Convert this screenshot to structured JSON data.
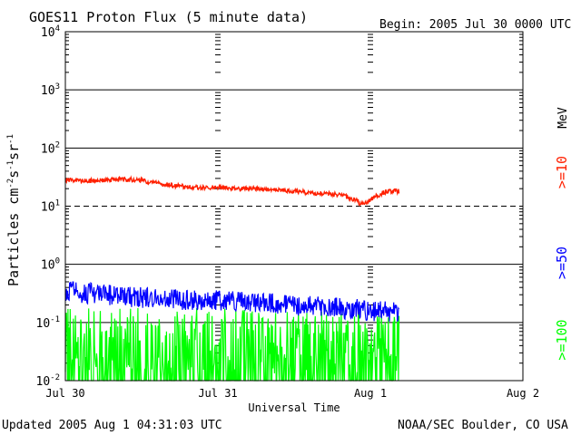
{
  "chart_data": {
    "type": "line",
    "title": "GOES11 Proton Flux (5 minute data)",
    "begin_label": "Begin: 2005 Jul 30 0000 UTC",
    "xlabel": "Universal Time",
    "ylabel_main": "Particles cm",
    "ylabel_exp1": "-2",
    "ylabel_mid1": "s",
    "ylabel_exp2": "-1",
    "ylabel_mid2": "sr",
    "ylabel_exp3": "-1",
    "yscale": "log",
    "ylim": [
      0.01,
      10000
    ],
    "y_ticks": [
      {
        "value": 10000,
        "base": "10",
        "exp": "4"
      },
      {
        "value": 1000,
        "base": "10",
        "exp": "3"
      },
      {
        "value": 100,
        "base": "10",
        "exp": "2"
      },
      {
        "value": 10,
        "base": "10",
        "exp": "1"
      },
      {
        "value": 1,
        "base": "10",
        "exp": "0"
      },
      {
        "value": 0.1,
        "base": "10",
        "exp": "-1"
      },
      {
        "value": 0.01,
        "base": "10",
        "exp": "-2"
      }
    ],
    "x_ticks": [
      {
        "value": "2005-07-30",
        "label": "Jul 30"
      },
      {
        "value": "2005-07-31",
        "label": "Jul 31"
      },
      {
        "value": "2005-08-01",
        "label": "Aug 1"
      },
      {
        "value": "2005-08-02",
        "label": "Aug 2"
      }
    ],
    "xlim": [
      "2005-07-30",
      "2005-08-02"
    ],
    "alert_threshold": 10,
    "series": [
      {
        "name": ">=10",
        "unit": "MeV",
        "color": "#ff2000",
        "points": [
          [
            "2005-07-30T00:00",
            28
          ],
          [
            "2005-07-30T03:00",
            27
          ],
          [
            "2005-07-30T06:00",
            28
          ],
          [
            "2005-07-30T09:00",
            29
          ],
          [
            "2005-07-30T12:00",
            28
          ],
          [
            "2005-07-30T15:00",
            24
          ],
          [
            "2005-07-30T18:00",
            22
          ],
          [
            "2005-07-30T21:00",
            21
          ],
          [
            "2005-07-31T00:00",
            21
          ],
          [
            "2005-07-31T03:00",
            20
          ],
          [
            "2005-07-31T06:00",
            20
          ],
          [
            "2005-07-31T09:00",
            19
          ],
          [
            "2005-07-31T12:00",
            18
          ],
          [
            "2005-07-31T15:00",
            17
          ],
          [
            "2005-07-31T18:00",
            16
          ],
          [
            "2005-07-31T20:00",
            15
          ],
          [
            "2005-07-31T21:30",
            13
          ],
          [
            "2005-07-31T22:30",
            11
          ],
          [
            "2005-07-31T23:30",
            12
          ],
          [
            "2005-08-01T01:00",
            15
          ],
          [
            "2005-08-01T02:30",
            18
          ],
          [
            "2005-08-01T04:30",
            18
          ]
        ]
      },
      {
        "name": ">=50",
        "color": "#0000ff",
        "points": [
          [
            "2005-07-30T00:00",
            0.35
          ],
          [
            "2005-07-30T06:00",
            0.3
          ],
          [
            "2005-07-30T12:00",
            0.27
          ],
          [
            "2005-07-30T18:00",
            0.25
          ],
          [
            "2005-07-31T00:00",
            0.24
          ],
          [
            "2005-07-31T06:00",
            0.22
          ],
          [
            "2005-07-31T12:00",
            0.2
          ],
          [
            "2005-07-31T18:00",
            0.18
          ],
          [
            "2005-08-01T00:00",
            0.16
          ],
          [
            "2005-08-01T04:30",
            0.15
          ]
        ]
      },
      {
        "name": ">=100",
        "color": "#00ff00",
        "points": [
          [
            "2005-07-30T00:00",
            0.05
          ],
          [
            "2005-07-30T12:00",
            0.05
          ],
          [
            "2005-07-31T00:00",
            0.05
          ],
          [
            "2005-07-31T12:00",
            0.045
          ],
          [
            "2005-08-01T00:00",
            0.045
          ],
          [
            "2005-08-01T04:30",
            0.045
          ]
        ]
      }
    ]
  },
  "footer": {
    "updated": "Updated 2005 Aug  1 04:31:03 UTC",
    "credit": "NOAA/SEC Boulder, CO USA"
  }
}
